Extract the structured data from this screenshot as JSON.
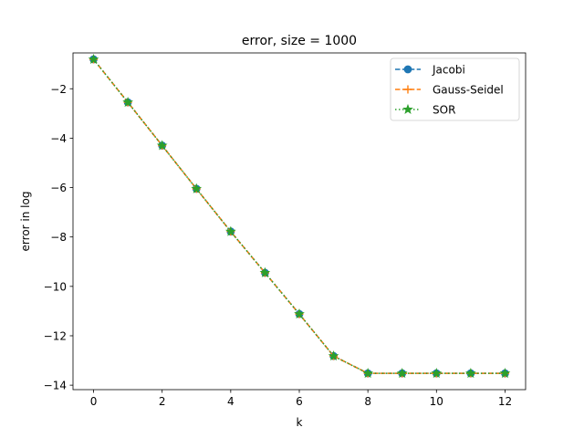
{
  "chart_data": {
    "type": "line",
    "title": "error, size = 1000",
    "xlabel": "k",
    "ylabel": "error in log",
    "xlim": [
      -0.6,
      12.6
    ],
    "ylim": [
      -14.18,
      -0.55
    ],
    "xticks": [
      0,
      2,
      4,
      6,
      8,
      10,
      12
    ],
    "yticks": [
      -14,
      -12,
      -10,
      -8,
      -6,
      -4,
      -2
    ],
    "ytick_labels": [
      "−14",
      "−12",
      "−10",
      "−8",
      "−6",
      "−4",
      "−2"
    ],
    "grid": false,
    "legend_position": "top-right",
    "x": [
      0,
      1,
      2,
      3,
      4,
      5,
      6,
      7,
      8,
      9,
      10,
      11,
      12
    ],
    "series": [
      {
        "name": "Jacobi",
        "color": "#1f77b4",
        "linestyle": "dashed",
        "marker": "circle",
        "values": [
          -0.81,
          -2.55,
          -4.3,
          -6.05,
          -7.78,
          -9.45,
          -11.12,
          -12.82,
          -13.52,
          -13.52,
          -13.52,
          -13.52,
          -13.52
        ]
      },
      {
        "name": "Gauss-Seidel",
        "color": "#ff7f0e",
        "linestyle": "dashed",
        "marker": "plus",
        "values": [
          -0.81,
          -2.55,
          -4.3,
          -6.05,
          -7.78,
          -9.45,
          -11.12,
          -12.82,
          -13.52,
          -13.52,
          -13.52,
          -13.52,
          -13.52
        ]
      },
      {
        "name": "SOR",
        "color": "#2ca02c",
        "linestyle": "dotted",
        "marker": "star",
        "values": [
          -0.81,
          -2.55,
          -4.3,
          -6.05,
          -7.78,
          -9.45,
          -11.12,
          -12.82,
          -13.52,
          -13.52,
          -13.52,
          -13.52,
          -13.52
        ]
      }
    ]
  }
}
